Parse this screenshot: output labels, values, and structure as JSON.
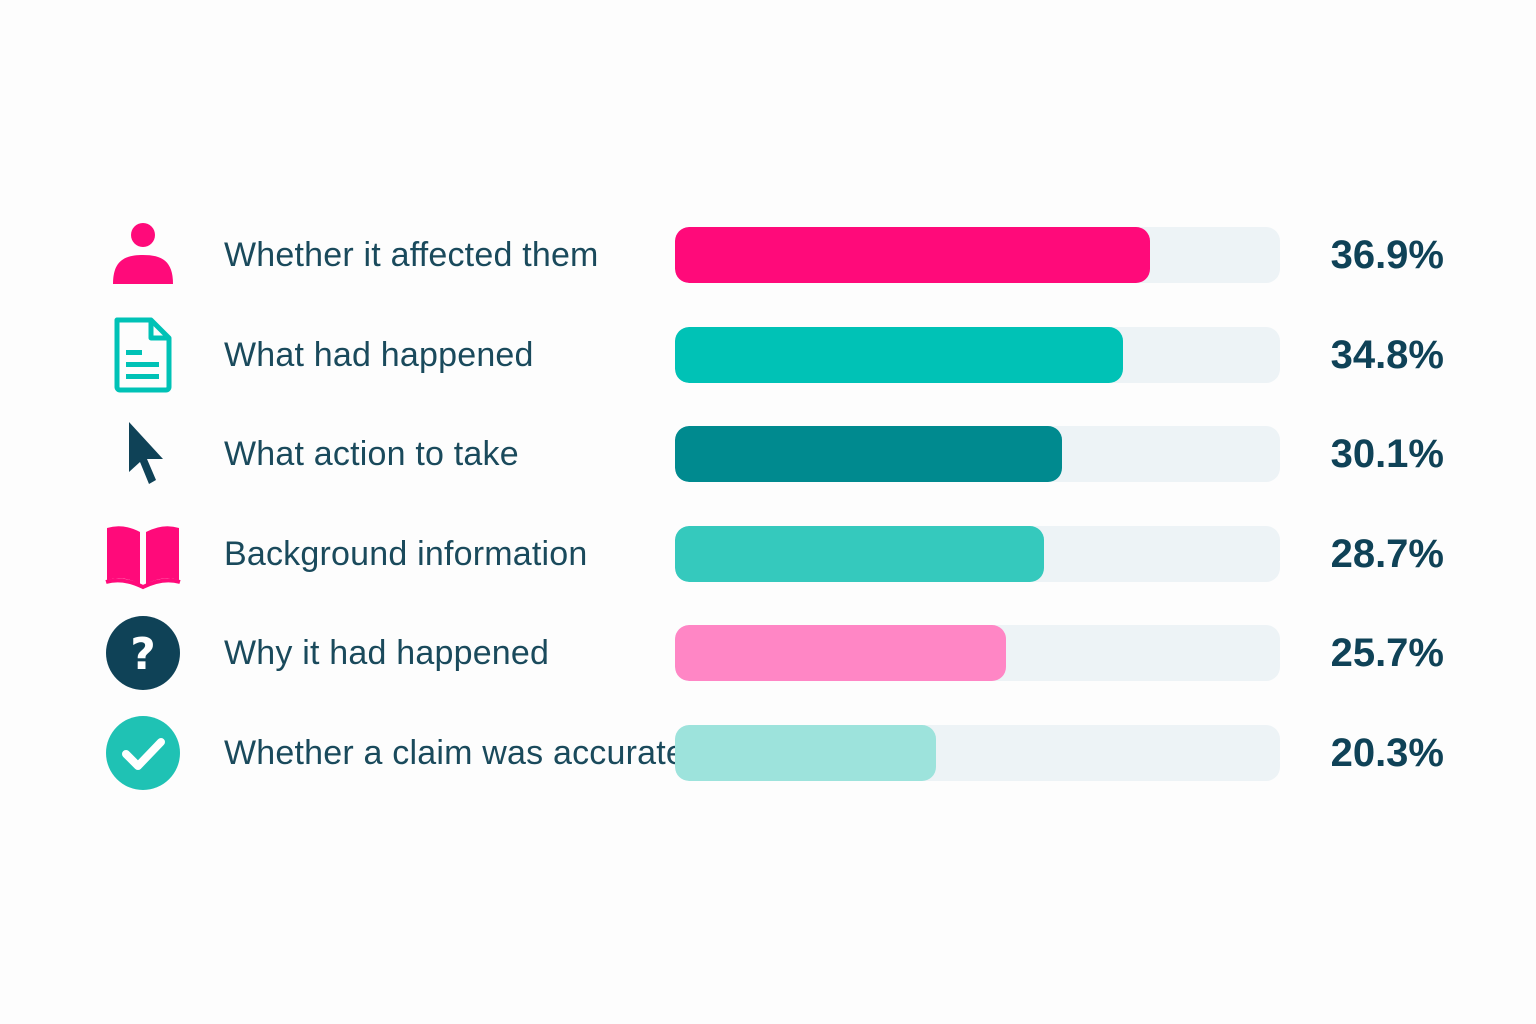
{
  "chart_data": {
    "type": "bar",
    "orientation": "horizontal",
    "categories": [
      "Whether it affected them",
      "What had happened",
      "What action to take",
      "Background information",
      "Why it had happened",
      "Whether a claim was accurate"
    ],
    "values": [
      36.9,
      34.8,
      30.1,
      28.7,
      25.7,
      20.3
    ],
    "value_labels": [
      "36.9%",
      "34.8%",
      "30.1%",
      "28.7%",
      "25.7%",
      "20.3%"
    ],
    "icons": [
      "person-icon",
      "document-icon",
      "cursor-icon",
      "book-icon",
      "question-icon",
      "checkmark-icon"
    ],
    "bar_colors": [
      "#ff0a7a",
      "#00c2b6",
      "#008a8f",
      "#35c9bd",
      "#ff86c5",
      "#9de3dc"
    ],
    "icon_colors": [
      "#ff0a7a",
      "#00c2b6",
      "#0f4257",
      "#ff0a7a",
      "#0f4257",
      "#1fc2b4"
    ],
    "xlim": [
      0,
      47
    ],
    "title": "",
    "xlabel": "",
    "ylabel": "",
    "grid": false,
    "legend": "none"
  }
}
